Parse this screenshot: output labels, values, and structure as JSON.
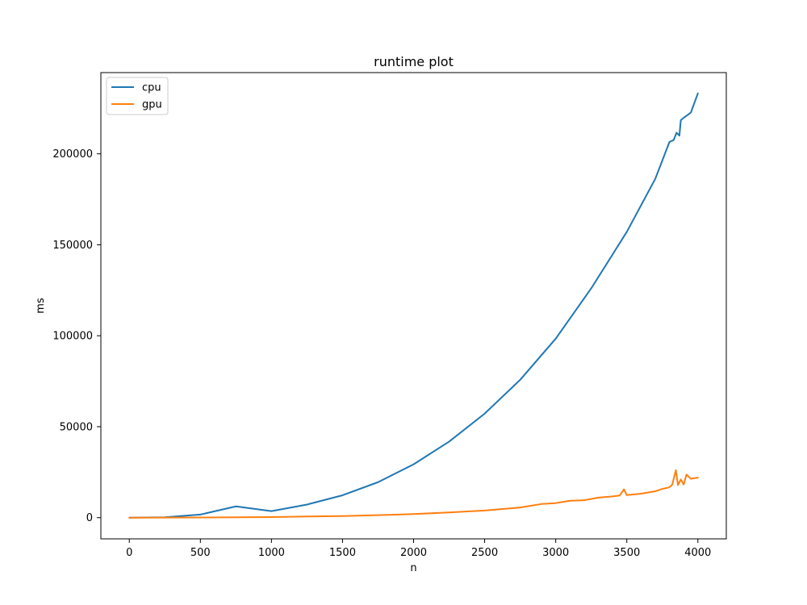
{
  "chart_data": {
    "type": "line",
    "title": "runtime plot",
    "xlabel": "n",
    "ylabel": "ms",
    "xlim": [
      -200,
      4200
    ],
    "ylim": [
      -11650,
      244650
    ],
    "xticks": [
      0,
      500,
      1000,
      1500,
      2000,
      2500,
      3000,
      3500,
      4000
    ],
    "yticks": [
      0,
      50000,
      100000,
      150000,
      200000
    ],
    "grid": false,
    "legend_position": "top-left",
    "series": [
      {
        "name": "cpu",
        "color": "#1f77b4",
        "x": [
          0,
          250,
          500,
          750,
          1000,
          1250,
          1500,
          1750,
          2000,
          2250,
          2500,
          2750,
          3000,
          3250,
          3500,
          3700,
          3800,
          3830,
          3850,
          3870,
          3880,
          3900,
          3950,
          4000
        ],
        "y": [
          0,
          230,
          1700,
          6200,
          3600,
          7200,
          12300,
          19500,
          29300,
          41800,
          57200,
          75800,
          98400,
          126100,
          157100,
          186200,
          206500,
          207600,
          211600,
          210000,
          218500,
          219800,
          222600,
          233200
        ]
      },
      {
        "name": "gpu",
        "color": "#ff7f0e",
        "x": [
          0,
          500,
          1000,
          1500,
          1750,
          2000,
          2250,
          2500,
          2750,
          2900,
          3000,
          3100,
          3200,
          3300,
          3400,
          3450,
          3480,
          3500,
          3600,
          3700,
          3750,
          3800,
          3820,
          3845,
          3860,
          3880,
          3900,
          3920,
          3950,
          4000
        ],
        "y": [
          0,
          100,
          350,
          900,
          1400,
          2000,
          2900,
          3900,
          5600,
          7500,
          8000,
          9300,
          9600,
          11000,
          11700,
          12200,
          15600,
          12400,
          13200,
          14500,
          15800,
          16700,
          18200,
          26100,
          17900,
          21000,
          18200,
          23700,
          21400,
          22000
        ]
      }
    ]
  }
}
